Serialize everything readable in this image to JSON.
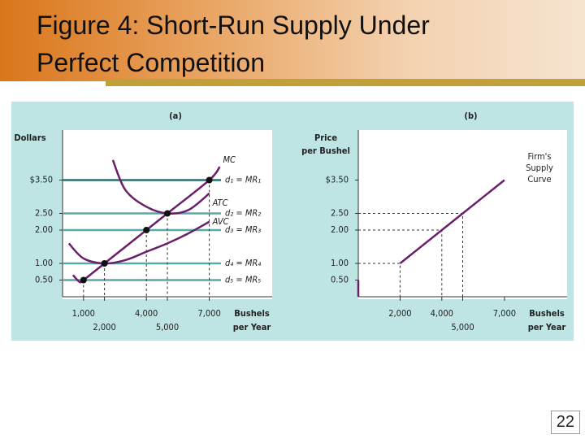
{
  "slide": {
    "title": [
      "Figure 4: Short-Run Supply Under",
      "Perfect Competition"
    ],
    "page_number": "22"
  },
  "chart_data": [
    {
      "type": "line",
      "title": "(a)",
      "ylabel": [
        "Dollars"
      ],
      "xlabel": [
        "Bushels",
        "per Year"
      ],
      "xlim": [
        0,
        10000
      ],
      "ylim": [
        0,
        5
      ],
      "xticks": [
        {
          "value": 1000,
          "label": "1,000"
        },
        {
          "value": 2000,
          "label": "2,000"
        },
        {
          "value": 4000,
          "label": "4,000"
        },
        {
          "value": 5000,
          "label": "5,000"
        },
        {
          "value": 7000,
          "label": "7,000"
        }
      ],
      "yticks": [
        {
          "value": 3.5,
          "label": "$3.50"
        },
        {
          "value": 2.5,
          "label": "2.50"
        },
        {
          "value": 2,
          "label": "2.00"
        },
        {
          "value": 1,
          "label": "1.00"
        },
        {
          "value": 0.5,
          "label": "0.50"
        }
      ],
      "series": [
        {
          "name": "MC",
          "color": "#6b1f6b",
          "x": [
            500,
            800,
            1000,
            2000,
            4000,
            5000,
            7000,
            7500
          ],
          "values": [
            0.65,
            0.45,
            0.5,
            1.0,
            2.0,
            2.5,
            3.5,
            3.9
          ]
        },
        {
          "name": "ATC",
          "color": "#6b1f6b",
          "x": [
            2400,
            3000,
            4000,
            5000,
            6000,
            7000
          ],
          "values": [
            4.1,
            3.2,
            2.7,
            2.5,
            2.6,
            3.1
          ]
        },
        {
          "name": "AVC",
          "color": "#6b1f6b",
          "x": [
            300,
            1000,
            2000,
            3000,
            4000,
            5000,
            6000,
            7000
          ],
          "values": [
            1.6,
            1.15,
            1.0,
            1.1,
            1.35,
            1.6,
            1.9,
            2.25
          ]
        }
      ],
      "demand_lines": [
        {
          "label": "d₁ = MR₁",
          "value": 3.5,
          "color": "#2b6f6f"
        },
        {
          "label": "d₂ = MR₂",
          "value": 2.5,
          "color": "#5aa9a9"
        },
        {
          "label": "d₃ = MR₃",
          "value": 2,
          "color": "#5aa9a9"
        },
        {
          "label": "d₄ = MR₄",
          "value": 1,
          "color": "#5aa9a9"
        },
        {
          "label": "d₅ = MR₅",
          "value": 0.5,
          "color": "#5aa9a9"
        }
      ],
      "markers": {
        "x": [
          1000,
          2000,
          4000,
          5000,
          7000
        ],
        "values": [
          0.5,
          1.0,
          2.0,
          2.5,
          3.5
        ]
      }
    },
    {
      "type": "line",
      "title": "(b)",
      "ylabel": [
        "Price",
        "per Bushel"
      ],
      "xlabel": [
        "Bushels",
        "per Year"
      ],
      "xlim": [
        0,
        10000
      ],
      "ylim": [
        0,
        5
      ],
      "xticks": [
        {
          "value": 2000,
          "label": "2,000"
        },
        {
          "value": 4000,
          "label": "4,000"
        },
        {
          "value": 5000,
          "label": "5,000"
        },
        {
          "value": 7000,
          "label": "7,000"
        }
      ],
      "yticks": [
        {
          "value": 3.5,
          "label": "$3.50"
        },
        {
          "value": 2.5,
          "label": "2.50"
        },
        {
          "value": 2,
          "label": "2.00"
        },
        {
          "value": 1,
          "label": "1.00"
        },
        {
          "value": 0.5,
          "label": "0.50"
        }
      ],
      "series": [
        {
          "color": "#6b1f6b",
          "x": [
            2000,
            4000,
            5000,
            7000
          ],
          "values": [
            1.0,
            2.0,
            2.5,
            3.5
          ]
        },
        {
          "color": "#6b1f6b",
          "x": [
            0,
            0
          ],
          "values": [
            0,
            0.5
          ]
        }
      ],
      "guides": {
        "x": [
          2000,
          4000,
          5000
        ],
        "values": [
          1.0,
          2.0,
          2.5
        ]
      },
      "annotation": [
        "Firm's",
        "Supply",
        "Curve"
      ]
    }
  ]
}
